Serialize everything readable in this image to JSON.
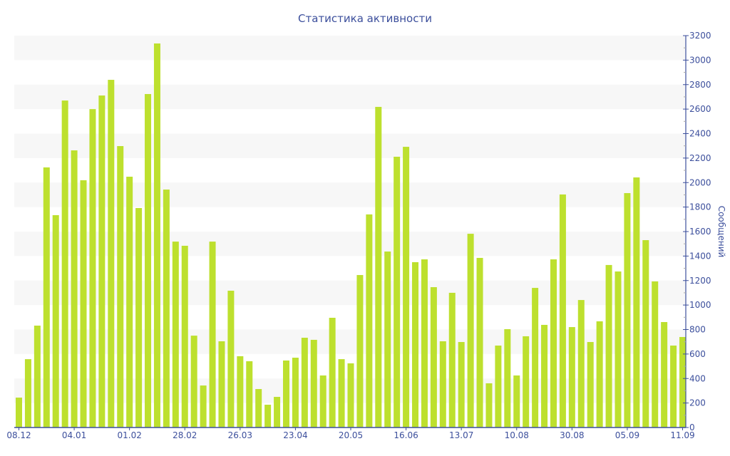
{
  "chart_data": {
    "type": "bar",
    "title": "Статистика активности",
    "xlabel": "",
    "ylabel": "Сообщений",
    "ylim": [
      0,
      3200
    ],
    "yticks": [
      0,
      200,
      400,
      600,
      800,
      1000,
      1200,
      1400,
      1600,
      1800,
      2000,
      2200,
      2400,
      2600,
      2800,
      3000,
      3200
    ],
    "y_axis_side": "right",
    "grid": "alternating horizontal bands",
    "xtick_labels": [
      {
        "bar_index": 0,
        "label": "08.12"
      },
      {
        "bar_index": 6,
        "label": "04.01"
      },
      {
        "bar_index": 12,
        "label": "01.02"
      },
      {
        "bar_index": 18,
        "label": "28.02"
      },
      {
        "bar_index": 24,
        "label": "26.03"
      },
      {
        "bar_index": 30,
        "label": "23.04"
      },
      {
        "bar_index": 36,
        "label": "20.05"
      },
      {
        "bar_index": 42,
        "label": "16.06"
      },
      {
        "bar_index": 48,
        "label": "13.07"
      },
      {
        "bar_index": 54,
        "label": "10.08"
      },
      {
        "bar_index": 60,
        "label": "30.08"
      },
      {
        "bar_index": 66,
        "label": "05.09"
      },
      {
        "bar_index": 72,
        "label": "11.09"
      }
    ],
    "values": [
      244,
      558,
      832,
      2124,
      1734,
      2670,
      2263,
      2019,
      2600,
      2711,
      2839,
      2298,
      2048,
      1792,
      2723,
      3136,
      1943,
      1518,
      1484,
      750,
      343,
      1518,
      704,
      1117,
      582,
      541,
      314,
      186,
      250,
      547,
      570,
      733,
      716,
      425,
      896,
      558,
      524,
      1245,
      1740,
      2618,
      1437,
      2211,
      2292,
      1350,
      1373,
      1146,
      704,
      1100,
      698,
      1582,
      1385,
      361,
      669,
      803,
      425,
      745,
      1140,
      838,
      1373,
      1903,
      820,
      1041,
      698,
      867,
      1327,
      1274,
      1914,
      2042,
      1530,
      1193,
      861,
      669,
      739
    ],
    "colors": {
      "bar": "#bde02e",
      "axis": "#3c4f9c",
      "band": "#f7f7f7"
    }
  }
}
